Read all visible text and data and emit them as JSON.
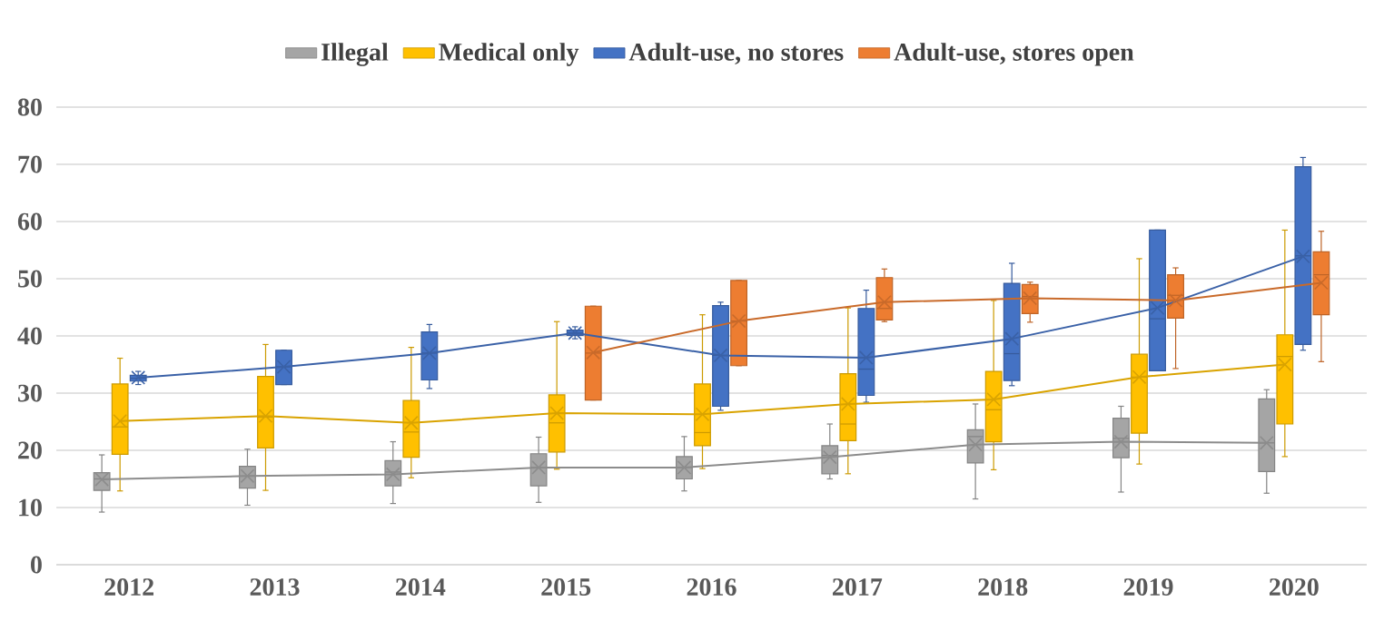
{
  "chart_data": {
    "type": "box",
    "categories": [
      "2012",
      "2013",
      "2014",
      "2015",
      "2016",
      "2017",
      "2018",
      "2019",
      "2020"
    ],
    "ylim": [
      0,
      80
    ],
    "yticks": [
      0,
      10,
      20,
      30,
      40,
      50,
      60,
      70,
      80
    ],
    "grid": "y",
    "legend": "top",
    "marker": "cross",
    "series": [
      {
        "name": "Illegal",
        "color": "#a5a5a5",
        "boxes": [
          {
            "low": 9.2,
            "q1": 13.0,
            "median": 15.0,
            "q3": 16.1,
            "high": 19.2
          },
          {
            "low": 10.4,
            "q1": 13.4,
            "median": 15.5,
            "q3": 17.2,
            "high": 20.2
          },
          {
            "low": 10.7,
            "q1": 13.8,
            "median": 16.2,
            "q3": 18.2,
            "high": 21.5
          },
          {
            "low": 10.9,
            "q1": 13.8,
            "median": 17.0,
            "q3": 19.4,
            "high": 22.3
          },
          {
            "low": 12.9,
            "q1": 15.0,
            "median": 17.0,
            "q3": 18.9,
            "high": 22.4
          },
          {
            "low": 15.0,
            "q1": 15.9,
            "median": 19.1,
            "q3": 20.8,
            "high": 24.6
          },
          {
            "low": 11.5,
            "q1": 17.8,
            "median": 22.4,
            "q3": 23.6,
            "high": 28.1
          },
          {
            "low": 12.7,
            "q1": 18.7,
            "median": 22.1,
            "q3": 25.6,
            "high": 27.7
          },
          {
            "low": 12.5,
            "q1": 16.3,
            "median": 21.3,
            "q3": 29.0,
            "high": 30.6
          }
        ]
      },
      {
        "name": "Medical only",
        "color": "#ffc000",
        "boxes": [
          {
            "low": 12.9,
            "q1": 19.3,
            "median": 24.1,
            "q3": 31.6,
            "high": 36.1
          },
          {
            "low": 13.0,
            "q1": 20.4,
            "median": 25.8,
            "q3": 32.9,
            "high": 38.5
          },
          {
            "low": 15.2,
            "q1": 18.8,
            "median": 23.2,
            "q3": 28.7,
            "high": 38.0
          },
          {
            "low": 16.7,
            "q1": 19.7,
            "median": 24.8,
            "q3": 29.7,
            "high": 42.5
          },
          {
            "low": 16.8,
            "q1": 20.8,
            "median": 23.1,
            "q3": 31.6,
            "high": 43.7
          },
          {
            "low": 15.9,
            "q1": 21.7,
            "median": 24.6,
            "q3": 33.4,
            "high": 44.9
          },
          {
            "low": 16.6,
            "q1": 21.5,
            "median": 27.1,
            "q3": 33.8,
            "high": 46.2
          },
          {
            "low": 17.6,
            "q1": 23.0,
            "median": 32.8,
            "q3": 36.8,
            "high": 53.5
          },
          {
            "low": 18.9,
            "q1": 24.6,
            "median": 36.4,
            "q3": 40.2,
            "high": 58.5
          }
        ]
      },
      {
        "name": "Adult-use, no stores",
        "color": "#4472c4",
        "boxes": [
          {
            "low": 31.5,
            "q1": 32.1,
            "median": 32.6,
            "q3": 33.1,
            "high": 33.8
          },
          {
            "low": 31.5,
            "q1": 31.5,
            "median": 34.6,
            "q3": 37.5,
            "high": 37.5
          },
          {
            "low": 30.8,
            "q1": 32.3,
            "median": 37.0,
            "q3": 40.7,
            "high": 42.0
          },
          {
            "low": 39.5,
            "q1": 40.1,
            "median": 40.5,
            "q3": 41.0,
            "high": 41.6
          },
          {
            "low": 27.0,
            "q1": 27.7,
            "median": 36.6,
            "q3": 45.3,
            "high": 45.9
          },
          {
            "low": 28.4,
            "q1": 29.6,
            "median": 34.2,
            "q3": 44.8,
            "high": 48.0
          },
          {
            "low": 31.3,
            "q1": 32.2,
            "median": 36.9,
            "q3": 49.2,
            "high": 52.7
          },
          {
            "low": 33.9,
            "q1": 33.9,
            "median": 43.0,
            "q3": 58.5,
            "high": 58.5
          },
          {
            "low": 37.5,
            "q1": 38.5,
            "median": 54.0,
            "q3": 69.6,
            "high": 71.2
          }
        ]
      },
      {
        "name": "Adult-use, stores open",
        "color": "#ed7d31",
        "boxes": [
          null,
          null,
          null,
          {
            "low": 28.8,
            "q1": 28.8,
            "median": 37.0,
            "q3": 45.2,
            "high": 45.2
          },
          {
            "low": 34.8,
            "q1": 34.8,
            "median": 42.6,
            "q3": 49.7,
            "high": 49.7
          },
          {
            "low": 42.5,
            "q1": 42.8,
            "median": 44.8,
            "q3": 50.2,
            "high": 51.7
          },
          {
            "low": 42.4,
            "q1": 43.9,
            "median": 46.9,
            "q3": 49.0,
            "high": 49.4
          },
          {
            "low": 34.3,
            "q1": 43.1,
            "median": 47.1,
            "q3": 50.7,
            "high": 51.9
          },
          {
            "low": 35.5,
            "q1": 43.7,
            "median": 50.7,
            "q3": 54.7,
            "high": 58.3
          }
        ]
      },
      {
        "type": "line",
        "color": "#8c8c8c",
        "values": [
          14.9,
          15.5,
          15.8,
          17.0,
          17.0,
          18.8,
          21.0,
          21.5,
          21.3
        ]
      },
      {
        "type": "line",
        "color": "#d9a300",
        "values": [
          25.1,
          26.0,
          24.8,
          26.5,
          26.3,
          28.1,
          28.9,
          32.8,
          35.0
        ]
      },
      {
        "type": "line",
        "color": "#3a61a7",
        "values": [
          32.7,
          34.6,
          37.0,
          40.5,
          36.6,
          36.2,
          39.5,
          44.9,
          53.9
        ]
      },
      {
        "type": "line",
        "color": "#c96a2a",
        "values": [
          null,
          null,
          null,
          37.1,
          42.6,
          45.9,
          46.6,
          46.2,
          49.3
        ]
      }
    ]
  }
}
